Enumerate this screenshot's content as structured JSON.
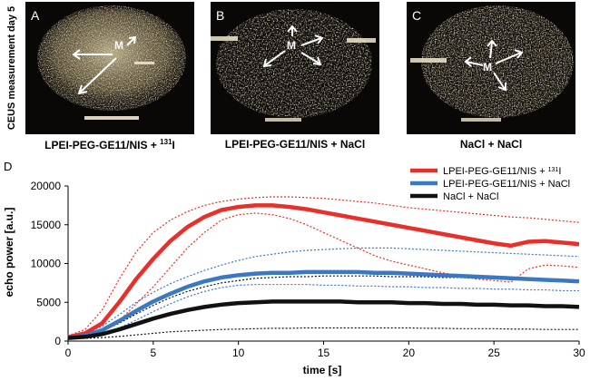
{
  "vertical_label": "CEUS measurement day 5",
  "panels": [
    {
      "letter": "A",
      "marker": "M",
      "caption_main": "LPEI-PEG-GE11/NIS + ",
      "caption_sup": "131",
      "caption_tail": "I"
    },
    {
      "letter": "B",
      "marker": "M",
      "caption_main": "LPEI-PEG-GE11/NIS + NaCl",
      "caption_sup": "",
      "caption_tail": ""
    },
    {
      "letter": "C",
      "marker": "M",
      "caption_main": "NaCl + NaCl",
      "caption_sup": "",
      "caption_tail": ""
    }
  ],
  "panel_d_letter": "D",
  "chart_data": {
    "type": "line",
    "xlabel": "time [s]",
    "ylabel": "echo power [a.u.]",
    "xlim": [
      0,
      30
    ],
    "ylim": [
      0,
      20000
    ],
    "xticks": [
      0,
      5,
      10,
      15,
      20,
      25,
      30
    ],
    "yticks": [
      0,
      5000,
      10000,
      15000,
      20000
    ],
    "legend_position": "top-right",
    "x": [
      0,
      1,
      2,
      3,
      4,
      5,
      6,
      7,
      8,
      9,
      10,
      11,
      12,
      13,
      14,
      15,
      16,
      17,
      18,
      19,
      20,
      21,
      22,
      23,
      24,
      25,
      26,
      27,
      28,
      29,
      30
    ],
    "series": [
      {
        "legend_main": "LPEI-PEG-GE11/NIS + ",
        "legend_sup": "131",
        "legend_tail": "I",
        "color": "#e8302a",
        "values": [
          500,
          1000,
          2300,
          5000,
          8000,
          10600,
          12900,
          14700,
          16000,
          16900,
          17300,
          17500,
          17500,
          17300,
          17000,
          16600,
          16200,
          15800,
          15400,
          15000,
          14600,
          14200,
          13800,
          13400,
          13000,
          12600,
          12300,
          12800,
          12900,
          12700,
          12500
        ],
        "upper": [
          700,
          1500,
          4000,
          8000,
          11500,
          14000,
          15600,
          16700,
          17500,
          18000,
          18300,
          18500,
          18600,
          18600,
          18500,
          18400,
          18200,
          18000,
          17800,
          17500,
          17200,
          17000,
          16800,
          16600,
          16400,
          16200,
          16000,
          15900,
          15700,
          15500,
          15300
        ],
        "lower": [
          300,
          600,
          1200,
          2600,
          4800,
          7000,
          9500,
          12000,
          14000,
          15600,
          16300,
          16500,
          16300,
          15800,
          15000,
          14000,
          13000,
          12000,
          11000,
          10300,
          9800,
          9300,
          8800,
          8400,
          8000,
          7800,
          7600,
          9300,
          9800,
          9700,
          9500
        ]
      },
      {
        "legend_main": "LPEI-PEG-GE11/NIS + NaCl",
        "legend_sup": "",
        "legend_tail": "",
        "color": "#3a78c2",
        "values": [
          400,
          700,
          1400,
          2600,
          3900,
          5100,
          6100,
          7000,
          7700,
          8200,
          8500,
          8700,
          8800,
          8800,
          8900,
          8900,
          8900,
          8900,
          8800,
          8800,
          8700,
          8600,
          8500,
          8400,
          8300,
          8200,
          8100,
          8000,
          7900,
          7800,
          7700
        ],
        "upper": [
          500,
          900,
          1900,
          3400,
          5000,
          6300,
          7400,
          8300,
          9100,
          9800,
          10400,
          10900,
          11200,
          11500,
          11700,
          11800,
          11900,
          12000,
          12000,
          12000,
          11900,
          11800,
          11700,
          11600,
          11500,
          11400,
          11300,
          11200,
          11100,
          11000,
          10900
        ],
        "lower": [
          300,
          500,
          900,
          1700,
          2700,
          3800,
          4800,
          5700,
          6400,
          6900,
          7200,
          7300,
          7300,
          7300,
          7300,
          7200,
          7200,
          7100,
          7100,
          7000,
          7000,
          6900,
          6900,
          6800,
          6800,
          6700,
          6700,
          6600,
          6600,
          6500,
          6500
        ]
      },
      {
        "legend_main": "NaCl + NaCl",
        "legend_sup": "",
        "legend_tail": "",
        "color": "#111111",
        "values": [
          400,
          550,
          900,
          1500,
          2200,
          2900,
          3500,
          4000,
          4400,
          4700,
          4900,
          5000,
          5100,
          5100,
          5100,
          5100,
          5100,
          5000,
          5000,
          5000,
          4900,
          4900,
          4800,
          4800,
          4700,
          4700,
          4600,
          4600,
          4500,
          4500,
          4400
        ],
        "upper": [
          450,
          700,
          1300,
          2300,
          3500,
          4600,
          5600,
          6400,
          7000,
          7500,
          7800,
          8100,
          8200,
          8300,
          8300,
          8400,
          8400,
          8400,
          8400,
          8300,
          8300,
          8300,
          8200,
          8200,
          8100,
          8100,
          8000,
          7900,
          7800,
          7800,
          7700
        ],
        "lower": [
          300,
          350,
          450,
          600,
          800,
          1000,
          1200,
          1300,
          1400,
          1500,
          1550,
          1600,
          1650,
          1650,
          1700,
          1700,
          1700,
          1700,
          1700,
          1700,
          1700,
          1650,
          1650,
          1600,
          1600,
          1600,
          1550,
          1550,
          1500,
          1500,
          1500
        ]
      }
    ]
  }
}
